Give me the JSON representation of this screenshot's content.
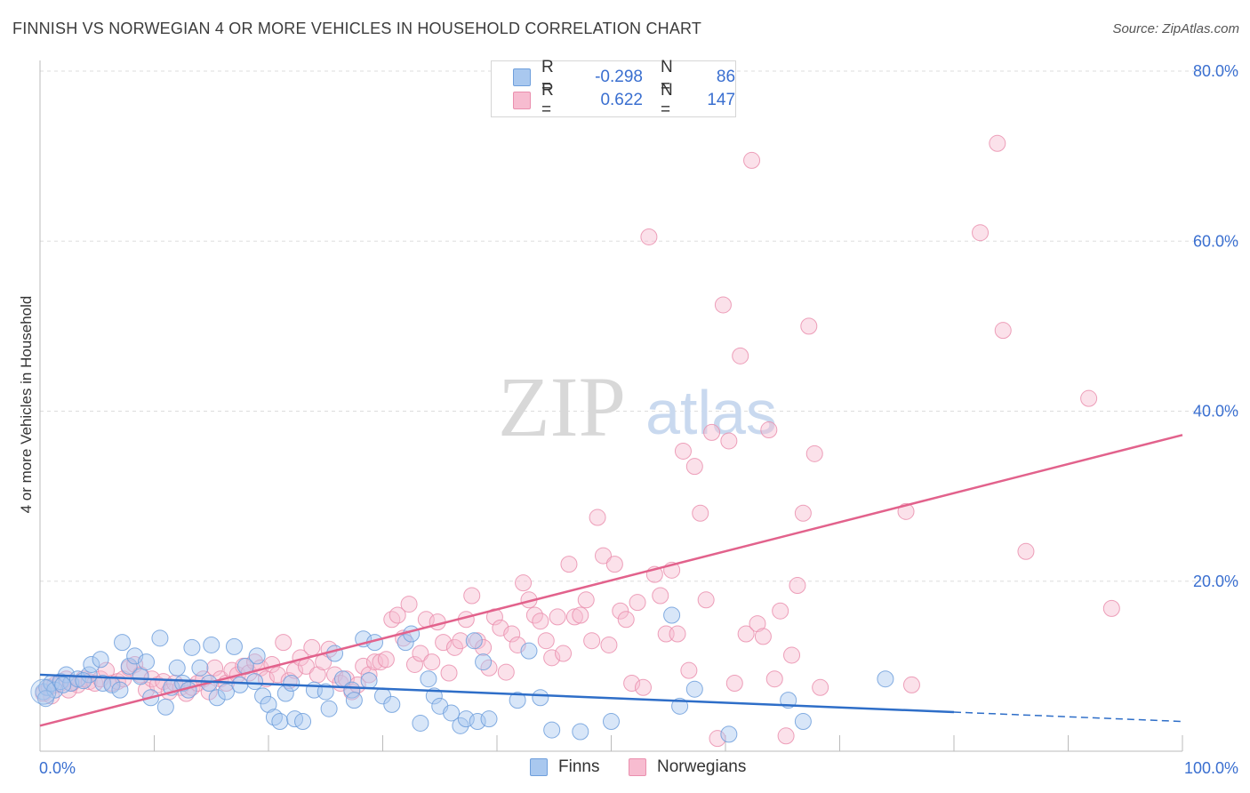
{
  "title": "FINNISH VS NORWEGIAN 4 OR MORE VEHICLES IN HOUSEHOLD CORRELATION CHART",
  "source": "Source: ZipAtlas.com",
  "watermark": {
    "zip": "ZIP",
    "atlas": "atlas"
  },
  "colors": {
    "finns_fill": "#a9c8ef",
    "finns_stroke": "#6f9fdc",
    "finns_line": "#2e6ec8",
    "norw_fill": "#f7bcd0",
    "norw_stroke": "#ea8fae",
    "norw_line": "#e2628c",
    "tick_text": "#3a6fd0",
    "grid": "#dddddd"
  },
  "legend_top": {
    "rows": [
      {
        "r_label": "R =",
        "r_value": "-0.298",
        "n_label": "N =",
        "n_value": "86"
      },
      {
        "r_label": "R =",
        "r_value": "0.622",
        "n_label": "N =",
        "n_value": "147"
      }
    ]
  },
  "legend_bottom": {
    "finns": "Finns",
    "norwegians": "Norwegians"
  },
  "chart_data": {
    "type": "scatter",
    "ylabel": "4 or more Vehicles in Household",
    "xlabel": "",
    "xlim": [
      0,
      100
    ],
    "ylim": [
      0,
      80
    ],
    "x_tick_labels": {
      "min": "0.0%",
      "max": "100.0%"
    },
    "y_ticks": [
      {
        "value": 20,
        "label": "20.0%"
      },
      {
        "value": 40,
        "label": "40.0%"
      },
      {
        "value": 60,
        "label": "60.0%"
      },
      {
        "value": 80,
        "label": "80.0%"
      }
    ],
    "grid": true,
    "legend_placement": "top-center",
    "series": [
      {
        "name": "Finns",
        "R": -0.298,
        "N": 86,
        "trend": {
          "x0": 0,
          "y0": 9.0,
          "x1": 80,
          "y1": 4.6,
          "dash_to_x": 100,
          "dash_to_y": 3.5
        },
        "points": [
          [
            0.3,
            7.0
          ],
          [
            0.6,
            7.5
          ],
          [
            1.0,
            8.0
          ],
          [
            1.3,
            7.2
          ],
          [
            1.8,
            8.2
          ],
          [
            2.3,
            9.0
          ],
          [
            2.7,
            8.0
          ],
          [
            3.3,
            8.5
          ],
          [
            4.3,
            9.0
          ],
          [
            4.5,
            10.2
          ],
          [
            5.3,
            10.8
          ],
          [
            5.5,
            8.0
          ],
          [
            6.3,
            7.8
          ],
          [
            7.0,
            7.2
          ],
          [
            7.2,
            12.8
          ],
          [
            7.8,
            10.0
          ],
          [
            8.3,
            11.2
          ],
          [
            8.8,
            8.8
          ],
          [
            9.3,
            10.5
          ],
          [
            9.7,
            6.3
          ],
          [
            10.5,
            13.3
          ],
          [
            11.0,
            5.2
          ],
          [
            11.5,
            7.5
          ],
          [
            12.0,
            9.8
          ],
          [
            12.5,
            8.0
          ],
          [
            13.0,
            7.2
          ],
          [
            13.3,
            12.2
          ],
          [
            14.0,
            9.8
          ],
          [
            14.8,
            8.0
          ],
          [
            15.0,
            12.5
          ],
          [
            15.5,
            6.3
          ],
          [
            16.3,
            7.0
          ],
          [
            17.0,
            12.3
          ],
          [
            17.5,
            7.8
          ],
          [
            18.0,
            10.0
          ],
          [
            18.8,
            8.2
          ],
          [
            19.0,
            11.2
          ],
          [
            19.5,
            6.5
          ],
          [
            20.0,
            5.5
          ],
          [
            20.5,
            4.0
          ],
          [
            21.0,
            3.5
          ],
          [
            21.5,
            6.8
          ],
          [
            22.0,
            8.0
          ],
          [
            22.3,
            3.8
          ],
          [
            23.0,
            3.5
          ],
          [
            24.0,
            7.2
          ],
          [
            25.0,
            7.0
          ],
          [
            25.3,
            5.0
          ],
          [
            25.8,
            11.5
          ],
          [
            26.5,
            8.5
          ],
          [
            27.3,
            7.2
          ],
          [
            27.5,
            6.0
          ],
          [
            28.3,
            13.2
          ],
          [
            28.8,
            8.3
          ],
          [
            29.3,
            12.8
          ],
          [
            30.0,
            6.5
          ],
          [
            30.8,
            5.5
          ],
          [
            32.0,
            12.8
          ],
          [
            32.5,
            13.8
          ],
          [
            33.3,
            3.3
          ],
          [
            34.0,
            8.5
          ],
          [
            34.5,
            6.5
          ],
          [
            35.0,
            5.3
          ],
          [
            36.0,
            4.5
          ],
          [
            36.8,
            3.0
          ],
          [
            37.3,
            3.8
          ],
          [
            38.0,
            13.0
          ],
          [
            38.3,
            3.5
          ],
          [
            38.8,
            10.5
          ],
          [
            39.3,
            3.8
          ],
          [
            41.8,
            6.0
          ],
          [
            42.8,
            11.8
          ],
          [
            43.8,
            6.3
          ],
          [
            44.8,
            2.5
          ],
          [
            47.3,
            2.3
          ],
          [
            50.0,
            3.5
          ],
          [
            55.3,
            16.0
          ],
          [
            56.0,
            5.3
          ],
          [
            57.3,
            7.3
          ],
          [
            60.3,
            2.0
          ],
          [
            65.5,
            6.0
          ],
          [
            66.8,
            3.5
          ],
          [
            74.0,
            8.5
          ],
          [
            0.5,
            6.2
          ],
          [
            2.0,
            7.8
          ],
          [
            3.8,
            8.3
          ]
        ]
      },
      {
        "name": "Norwegians",
        "R": 0.622,
        "N": 147,
        "trend": {
          "x0": 0,
          "y0": 3.0,
          "x1": 100,
          "y1": 37.2
        },
        "points": [
          [
            0.3,
            6.8
          ],
          [
            0.8,
            7.5
          ],
          [
            1.3,
            7.8
          ],
          [
            1.8,
            8.0
          ],
          [
            2.3,
            8.5
          ],
          [
            2.8,
            8.0
          ],
          [
            3.3,
            7.8
          ],
          [
            3.8,
            8.5
          ],
          [
            4.3,
            8.2
          ],
          [
            4.8,
            8.0
          ],
          [
            5.3,
            8.5
          ],
          [
            5.8,
            9.5
          ],
          [
            6.3,
            8.0
          ],
          [
            6.8,
            8.2
          ],
          [
            7.3,
            8.5
          ],
          [
            7.8,
            9.8
          ],
          [
            8.3,
            10.2
          ],
          [
            8.8,
            9.0
          ],
          [
            9.3,
            7.2
          ],
          [
            9.8,
            8.5
          ],
          [
            10.3,
            7.8
          ],
          [
            10.8,
            8.2
          ],
          [
            11.3,
            7.0
          ],
          [
            11.8,
            8.0
          ],
          [
            12.3,
            7.5
          ],
          [
            12.8,
            6.8
          ],
          [
            13.3,
            7.5
          ],
          [
            13.8,
            8.0
          ],
          [
            14.3,
            8.5
          ],
          [
            14.8,
            7.0
          ],
          [
            15.3,
            9.8
          ],
          [
            15.8,
            8.5
          ],
          [
            16.3,
            8.0
          ],
          [
            16.8,
            9.5
          ],
          [
            17.3,
            9.0
          ],
          [
            17.8,
            10.0
          ],
          [
            18.3,
            9.2
          ],
          [
            18.8,
            10.5
          ],
          [
            19.3,
            9.8
          ],
          [
            19.8,
            8.5
          ],
          [
            20.3,
            10.2
          ],
          [
            20.8,
            9.0
          ],
          [
            21.3,
            12.8
          ],
          [
            21.8,
            8.3
          ],
          [
            22.3,
            9.5
          ],
          [
            22.8,
            11.0
          ],
          [
            23.3,
            10.0
          ],
          [
            23.8,
            12.2
          ],
          [
            24.3,
            9.0
          ],
          [
            24.8,
            10.5
          ],
          [
            25.3,
            12.0
          ],
          [
            25.8,
            9.0
          ],
          [
            26.3,
            8.0
          ],
          [
            26.8,
            8.5
          ],
          [
            27.3,
            7.0
          ],
          [
            27.8,
            7.8
          ],
          [
            28.3,
            10.0
          ],
          [
            28.8,
            9.0
          ],
          [
            29.3,
            10.5
          ],
          [
            29.8,
            10.5
          ],
          [
            30.3,
            10.8
          ],
          [
            30.8,
            15.5
          ],
          [
            31.3,
            16.0
          ],
          [
            31.8,
            13.3
          ],
          [
            32.3,
            17.3
          ],
          [
            32.8,
            10.2
          ],
          [
            33.3,
            11.5
          ],
          [
            33.8,
            15.5
          ],
          [
            34.3,
            10.5
          ],
          [
            34.8,
            15.2
          ],
          [
            35.3,
            12.8
          ],
          [
            35.8,
            9.2
          ],
          [
            36.3,
            12.2
          ],
          [
            36.8,
            13.0
          ],
          [
            37.3,
            15.5
          ],
          [
            37.8,
            18.3
          ],
          [
            38.3,
            13.0
          ],
          [
            38.8,
            12.2
          ],
          [
            39.3,
            9.8
          ],
          [
            39.8,
            15.8
          ],
          [
            40.3,
            14.5
          ],
          [
            40.8,
            9.3
          ],
          [
            41.3,
            13.8
          ],
          [
            41.8,
            12.5
          ],
          [
            42.3,
            19.8
          ],
          [
            42.8,
            17.8
          ],
          [
            43.3,
            16.0
          ],
          [
            43.8,
            15.3
          ],
          [
            44.3,
            13.0
          ],
          [
            44.8,
            11.0
          ],
          [
            45.3,
            15.8
          ],
          [
            45.8,
            11.5
          ],
          [
            46.3,
            22.0
          ],
          [
            46.8,
            15.8
          ],
          [
            47.3,
            16.0
          ],
          [
            47.8,
            17.8
          ],
          [
            48.3,
            13.0
          ],
          [
            48.8,
            27.5
          ],
          [
            49.3,
            23.0
          ],
          [
            49.8,
            12.5
          ],
          [
            50.3,
            22.0
          ],
          [
            50.8,
            16.5
          ],
          [
            51.3,
            15.5
          ],
          [
            51.8,
            8.0
          ],
          [
            52.3,
            17.5
          ],
          [
            52.8,
            7.5
          ],
          [
            53.3,
            60.5
          ],
          [
            53.8,
            20.8
          ],
          [
            54.3,
            18.3
          ],
          [
            54.8,
            13.8
          ],
          [
            55.3,
            21.3
          ],
          [
            55.8,
            13.8
          ],
          [
            56.3,
            35.3
          ],
          [
            56.8,
            9.5
          ],
          [
            57.3,
            33.5
          ],
          [
            57.8,
            28.0
          ],
          [
            58.3,
            17.8
          ],
          [
            58.8,
            37.5
          ],
          [
            59.3,
            1.5
          ],
          [
            59.8,
            52.5
          ],
          [
            60.3,
            36.5
          ],
          [
            60.8,
            8.0
          ],
          [
            61.3,
            46.5
          ],
          [
            61.8,
            13.8
          ],
          [
            62.3,
            69.5
          ],
          [
            62.8,
            15.0
          ],
          [
            63.3,
            13.5
          ],
          [
            63.8,
            37.8
          ],
          [
            64.3,
            8.5
          ],
          [
            64.8,
            16.5
          ],
          [
            65.3,
            1.8
          ],
          [
            65.8,
            11.3
          ],
          [
            66.3,
            19.5
          ],
          [
            66.8,
            28.0
          ],
          [
            67.3,
            50.0
          ],
          [
            67.8,
            35.0
          ],
          [
            68.3,
            7.5
          ],
          [
            75.8,
            28.2
          ],
          [
            82.3,
            61.0
          ],
          [
            83.8,
            71.5
          ],
          [
            84.3,
            49.5
          ],
          [
            86.3,
            23.5
          ],
          [
            91.8,
            41.5
          ],
          [
            93.8,
            16.8
          ],
          [
            76.3,
            7.8
          ],
          [
            1.0,
            6.5
          ],
          [
            2.5,
            7.2
          ]
        ]
      }
    ]
  }
}
